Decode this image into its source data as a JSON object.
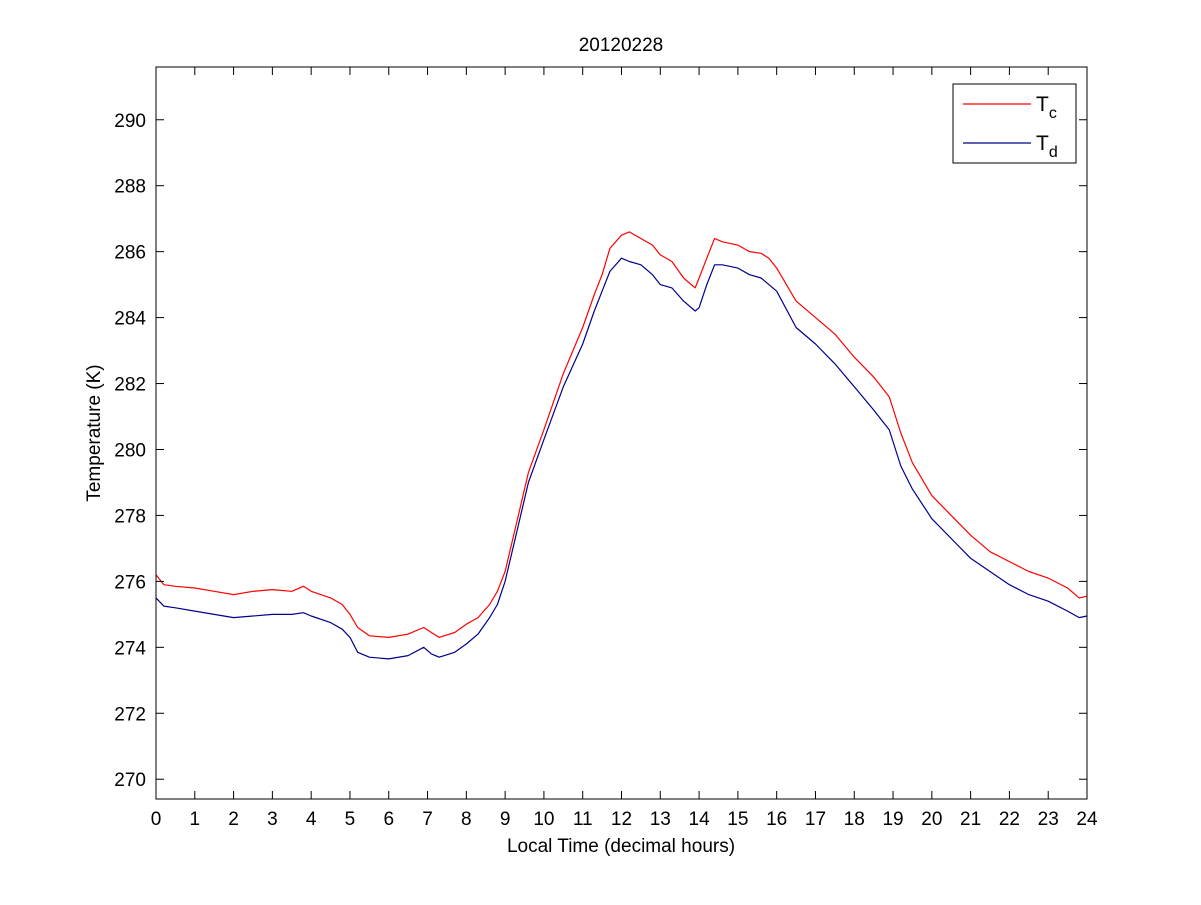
{
  "chart_data": {
    "type": "line",
    "title": "20120228",
    "xlabel": "Local Time (decimal hours)",
    "ylabel": "Temperature (K)",
    "xlim": [
      0,
      24
    ],
    "ylim": [
      269.4,
      291.6
    ],
    "xticks": [
      0,
      1,
      2,
      3,
      4,
      5,
      6,
      7,
      8,
      9,
      10,
      11,
      12,
      13,
      14,
      15,
      16,
      17,
      18,
      19,
      20,
      21,
      22,
      23,
      24
    ],
    "yticks": [
      270,
      272,
      274,
      276,
      278,
      280,
      282,
      284,
      286,
      288,
      290
    ],
    "grid": false,
    "legend_position": "top-right",
    "series": [
      {
        "name": "T",
        "subscript": "c",
        "color": "#ff0000",
        "x": [
          0,
          0.2,
          0.5,
          1,
          1.5,
          2,
          2.5,
          3,
          3.5,
          3.8,
          4,
          4.5,
          4.8,
          5,
          5.2,
          5.5,
          6,
          6.5,
          6.9,
          7.1,
          7.3,
          7.7,
          8,
          8.3,
          8.6,
          8.8,
          9,
          9.3,
          9.6,
          10,
          10.5,
          11,
          11.3,
          11.5,
          11.7,
          12,
          12.2,
          12.5,
          12.8,
          13,
          13.3,
          13.6,
          13.9,
          14,
          14.2,
          14.4,
          14.6,
          15,
          15.3,
          15.6,
          15.8,
          16,
          16.5,
          17,
          17.5,
          18,
          18.5,
          18.9,
          19.2,
          19.5,
          20,
          20.5,
          21,
          21.5,
          22,
          22.5,
          23,
          23.5,
          23.8,
          24
        ],
        "values": [
          276.2,
          275.9,
          275.85,
          275.8,
          275.7,
          275.6,
          275.7,
          275.75,
          275.7,
          275.85,
          275.7,
          275.5,
          275.3,
          275,
          274.6,
          274.35,
          274.3,
          274.4,
          274.6,
          274.45,
          274.3,
          274.45,
          274.7,
          274.9,
          275.3,
          275.7,
          276.3,
          277.8,
          279.3,
          280.6,
          282.3,
          283.7,
          284.7,
          285.3,
          286.1,
          286.5,
          286.6,
          286.4,
          286.2,
          285.9,
          285.7,
          285.2,
          284.9,
          285.2,
          285.8,
          286.4,
          286.3,
          286.2,
          286.0,
          285.95,
          285.8,
          285.5,
          284.5,
          284,
          283.5,
          282.8,
          282.2,
          281.6,
          280.5,
          279.6,
          278.6,
          278,
          277.4,
          276.9,
          276.6,
          276.3,
          276.1,
          275.8,
          275.5,
          275.55
        ]
      },
      {
        "name": "T",
        "subscript": "d",
        "color": "#00008b",
        "x": [
          0,
          0.2,
          0.5,
          1,
          1.5,
          2,
          2.5,
          3,
          3.5,
          3.8,
          4,
          4.5,
          4.8,
          5,
          5.2,
          5.5,
          6,
          6.5,
          6.9,
          7.1,
          7.3,
          7.7,
          8,
          8.3,
          8.6,
          8.8,
          9,
          9.3,
          9.6,
          10,
          10.5,
          11,
          11.3,
          11.5,
          11.7,
          12,
          12.2,
          12.5,
          12.8,
          13,
          13.3,
          13.6,
          13.9,
          14,
          14.2,
          14.4,
          14.6,
          15,
          15.3,
          15.6,
          15.8,
          16,
          16.5,
          17,
          17.5,
          18,
          18.5,
          18.9,
          19.2,
          19.5,
          20,
          20.5,
          21,
          21.5,
          22,
          22.5,
          23,
          23.5,
          23.8,
          24
        ],
        "values": [
          275.5,
          275.25,
          275.2,
          275.1,
          275,
          274.9,
          274.95,
          275,
          275,
          275.05,
          274.95,
          274.75,
          274.55,
          274.3,
          273.85,
          273.7,
          273.65,
          273.75,
          274,
          273.8,
          273.7,
          273.85,
          274.1,
          274.4,
          274.9,
          275.3,
          276,
          277.5,
          279,
          280.3,
          281.9,
          283.2,
          284.2,
          284.8,
          285.4,
          285.8,
          285.7,
          285.6,
          285.3,
          285.0,
          284.9,
          284.5,
          284.2,
          284.3,
          285.0,
          285.6,
          285.6,
          285.5,
          285.3,
          285.2,
          285.0,
          284.8,
          283.7,
          283.2,
          282.6,
          281.9,
          281.2,
          280.6,
          279.5,
          278.8,
          277.9,
          277.3,
          276.7,
          276.3,
          275.9,
          275.6,
          275.4,
          275.1,
          274.9,
          274.95
        ]
      }
    ]
  }
}
